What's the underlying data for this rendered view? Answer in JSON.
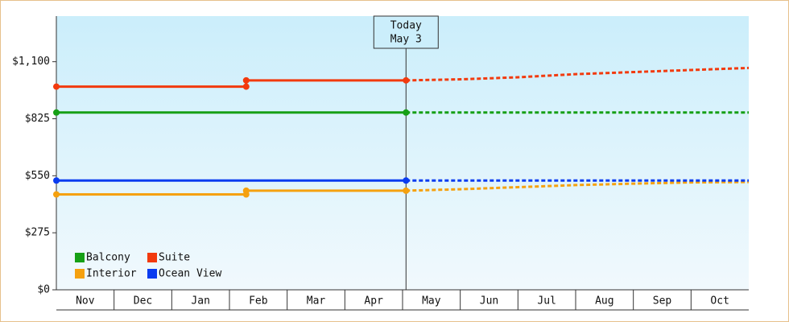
{
  "chart_data": {
    "type": "line",
    "xlim": [
      0,
      12
    ],
    "xticks": [
      {
        "value": 0,
        "label": "Nov"
      },
      {
        "value": 1,
        "label": "Dec"
      },
      {
        "value": 2,
        "label": "Jan"
      },
      {
        "value": 3,
        "label": "Feb"
      },
      {
        "value": 4,
        "label": "Mar"
      },
      {
        "value": 5,
        "label": "Apr"
      },
      {
        "value": 6,
        "label": "May"
      },
      {
        "value": 7,
        "label": "Jun"
      },
      {
        "value": 8,
        "label": "Jul"
      },
      {
        "value": 9,
        "label": "Aug"
      },
      {
        "value": 10,
        "label": "Sep"
      },
      {
        "value": 11,
        "label": "Oct"
      }
    ],
    "ylim": [
      0,
      1320
    ],
    "yticks": [
      {
        "value": 0,
        "label": "$0"
      },
      {
        "value": 275,
        "label": "$275"
      },
      {
        "value": 550,
        "label": "$550"
      },
      {
        "value": 825,
        "label": "$825"
      },
      {
        "value": 1100,
        "label": "$1,100"
      }
    ],
    "annotation": {
      "x": 6.06,
      "lines": [
        "Today",
        "May 3"
      ]
    },
    "legend": "lower left",
    "series": [
      {
        "name": "Balcony",
        "color": "#16a016",
        "x": [
          0,
          6.06
        ],
        "values": [
          855,
          855
        ],
        "forecast": {
          "x": [
            6.06,
            12
          ],
          "values": [
            855,
            855
          ]
        }
      },
      {
        "name": "Suite",
        "color": "#f23a0e",
        "x": [
          0,
          3.29,
          3.29,
          6.06
        ],
        "values": [
          980,
          980,
          1010,
          1010
        ],
        "forecast": {
          "x": [
            6.06,
            7,
            8,
            9,
            10,
            11,
            12
          ],
          "values": [
            1010,
            1015,
            1025,
            1040,
            1050,
            1060,
            1070
          ]
        }
      },
      {
        "name": "Interior",
        "color": "#f5a10f",
        "x": [
          0,
          3.29,
          3.29,
          6.06
        ],
        "values": [
          460,
          460,
          478,
          478
        ],
        "forecast": {
          "x": [
            6.06,
            7,
            8,
            9,
            10,
            11,
            12
          ],
          "values": [
            478,
            485,
            495,
            505,
            512,
            518,
            520
          ]
        }
      },
      {
        "name": "Ocean View",
        "color": "#0a3cf0",
        "x": [
          0,
          6.06
        ],
        "values": [
          527,
          527
        ],
        "forecast": {
          "x": [
            6.06,
            12
          ],
          "values": [
            527,
            527
          ]
        }
      }
    ]
  }
}
